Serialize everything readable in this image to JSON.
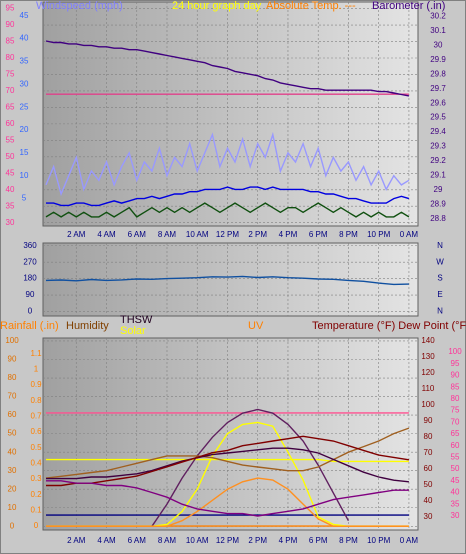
{
  "chart_data": [
    {
      "type": "line",
      "labels": [
        {
          "text": "Windspeed (mph)",
          "color": "#8080ff"
        },
        {
          "text": "24 hour graph day",
          "color": "#ffff00"
        },
        {
          "text": "Absolute Temp. ---",
          "color": "#ff8000"
        },
        {
          "text": "Barometer (.in)",
          "color": "#400080"
        }
      ],
      "x": [
        0,
        0.5,
        1,
        1.5,
        2,
        2.5,
        3,
        3.5,
        4,
        4.5,
        5,
        5.5,
        6,
        6.5,
        7,
        7.5,
        8,
        8.5,
        9,
        9.5,
        10,
        10.5,
        11,
        11.5,
        12,
        12.5,
        13,
        13.5,
        14,
        14.5,
        15,
        15.5,
        16,
        16.5,
        17,
        17.5,
        18,
        18.5,
        19,
        19.5,
        20,
        20.5,
        21,
        21.5,
        22,
        22.5,
        23,
        23.5,
        24
      ],
      "xlim": [
        -0.2,
        24.6
      ],
      "xticks": [
        {
          "value": 2,
          "label": "2 AM"
        },
        {
          "value": 4,
          "label": "4 AM"
        },
        {
          "value": 6,
          "label": "6 AM"
        },
        {
          "value": 8,
          "label": "8 AM"
        },
        {
          "value": 10,
          "label": "10 AM"
        },
        {
          "value": 12,
          "label": "12 PM"
        },
        {
          "value": 14,
          "label": "2 PM"
        },
        {
          "value": 16,
          "label": "4 PM"
        },
        {
          "value": 18,
          "label": "6 PM"
        },
        {
          "value": 20,
          "label": "8 PM"
        },
        {
          "value": 22,
          "label": "10 PM"
        },
        {
          "value": 24,
          "label": "0 AM"
        }
      ],
      "ylim": [
        29,
        97
      ],
      "yticks": [
        30,
        35,
        40,
        45,
        50,
        55,
        60,
        65,
        70,
        75,
        80,
        85,
        90,
        95
      ],
      "ycolor": "#ff3399",
      "y3lim": [
        -1,
        48
      ],
      "y3ticks": [
        5,
        10,
        15,
        20,
        25,
        30,
        35,
        40,
        45
      ],
      "y3color": "#3366ff",
      "y2lim": [
        28.75,
        30.3
      ],
      "y2ticks": [
        28.8,
        28.9,
        29,
        29.1,
        29.2,
        29.3,
        29.4,
        29.5,
        29.6,
        29.7,
        29.8,
        29.9,
        30,
        30.1,
        30.2
      ],
      "y2color": "#400080",
      "grid": true,
      "series": [
        {
          "name": "Absolute Temp.",
          "color": "#e0408a",
          "axis": "y",
          "values": [
            69,
            69,
            69,
            69,
            69,
            69,
            69,
            69,
            69,
            69,
            69,
            69,
            69,
            69,
            69,
            69,
            69,
            69,
            69,
            69,
            69,
            69,
            69,
            69,
            69,
            69,
            69,
            69,
            69,
            69,
            69,
            69,
            69,
            69,
            69,
            69,
            69,
            69,
            69,
            69,
            69,
            69,
            69,
            69,
            69,
            69,
            69,
            69,
            69
          ]
        },
        {
          "name": "Barometer (.in)",
          "color": "#400080",
          "axis": "y2",
          "values": [
            30.03,
            30.02,
            30.02,
            30.01,
            30.01,
            30.0,
            30.0,
            29.99,
            29.99,
            29.98,
            29.98,
            29.97,
            29.97,
            29.96,
            29.95,
            29.94,
            29.93,
            29.92,
            29.91,
            29.9,
            29.89,
            29.88,
            29.86,
            29.85,
            29.84,
            29.82,
            29.81,
            29.8,
            29.79,
            29.77,
            29.76,
            29.74,
            29.73,
            29.72,
            29.71,
            29.7,
            29.7,
            29.69,
            29.69,
            29.69,
            29.69,
            29.69,
            29.69,
            29.69,
            29.68,
            29.68,
            29.67,
            29.66,
            29.65
          ]
        },
        {
          "color": "#9999ff",
          "axis": "y3",
          "values": [
            8,
            12,
            6,
            10,
            14,
            7,
            11,
            9,
            13,
            8,
            12,
            15,
            9,
            13,
            11,
            16,
            10,
            14,
            12,
            17,
            11,
            15,
            19,
            12,
            16,
            13,
            18,
            12,
            17,
            14,
            19,
            11,
            15,
            13,
            17,
            12,
            16,
            10,
            14,
            11,
            13,
            9,
            12,
            8,
            11,
            7,
            10,
            8,
            9
          ]
        },
        {
          "color": "#0000e0",
          "axis": "y3",
          "values": [
            4,
            4,
            3.5,
            3.5,
            4,
            4,
            3.5,
            3.5,
            4,
            4.5,
            4,
            4.5,
            5,
            5,
            5.5,
            5,
            5.5,
            6,
            6,
            6.5,
            6.5,
            7,
            7,
            7,
            7.5,
            7,
            7,
            7.5,
            7.5,
            7,
            7.5,
            7,
            7,
            7,
            7,
            6.5,
            6.5,
            6,
            6,
            5.5,
            5,
            5,
            4.5,
            4,
            4,
            4,
            5,
            5.5,
            5
          ]
        },
        {
          "color": "#105010",
          "axis": "y3",
          "values": [
            1,
            2,
            1,
            2,
            1,
            2,
            1,
            1,
            2,
            1,
            2,
            3,
            1,
            2,
            3,
            2,
            3,
            2,
            3,
            2,
            3,
            4,
            3,
            2,
            3,
            4,
            3,
            2,
            3,
            4,
            3,
            2,
            3,
            3,
            2,
            3,
            4,
            3,
            2,
            3,
            2,
            1,
            2,
            1,
            2,
            1,
            1,
            2,
            1
          ]
        }
      ]
    },
    {
      "type": "line",
      "x": [
        0,
        1,
        2,
        3,
        4,
        5,
        6,
        7,
        8,
        9,
        10,
        11,
        12,
        13,
        14,
        15,
        16,
        17,
        18,
        19,
        20,
        21,
        22,
        23,
        24
      ],
      "xlim": [
        -0.2,
        24.6
      ],
      "ylim": [
        -25,
        375
      ],
      "yticks": [
        0,
        90,
        180,
        270,
        360
      ],
      "ycolor": "#000080",
      "y2lim": [
        -25,
        375
      ],
      "y2ticks": [
        {
          "value": 0,
          "label": "N"
        },
        {
          "value": 90,
          "label": "E"
        },
        {
          "value": 180,
          "label": "S"
        },
        {
          "value": 270,
          "label": "W"
        },
        {
          "value": 360,
          "label": "N"
        }
      ],
      "y2color": "#000080",
      "grid": true,
      "series": [
        {
          "color": "#1050a0",
          "axis": "y",
          "values": [
            170,
            172,
            168,
            175,
            170,
            173,
            178,
            176,
            180,
            182,
            185,
            190,
            188,
            192,
            186,
            190,
            185,
            182,
            178,
            176,
            170,
            165,
            155,
            148,
            150
          ]
        }
      ]
    },
    {
      "type": "line",
      "labels": [
        {
          "text": "Rainfall (.in)",
          "color": "#ff8000"
        },
        {
          "text": "Humidity",
          "color": "#804000"
        },
        {
          "text": "THSW",
          "color": "#200020"
        },
        {
          "text": "Solar",
          "color": "#ffff00"
        },
        {
          "text": "UV",
          "color": "#ff8000"
        },
        {
          "text": "Temperature (°F) Dew Point (°F)",
          "color": "#800000"
        }
      ],
      "x": [
        0,
        1,
        2,
        3,
        4,
        5,
        6,
        7,
        8,
        9,
        10,
        11,
        12,
        13,
        14,
        15,
        16,
        17,
        18,
        19,
        20,
        21,
        22,
        23,
        24
      ],
      "xlim": [
        -0.2,
        24.6
      ],
      "xticks": [
        {
          "value": 2,
          "label": "2 AM"
        },
        {
          "value": 4,
          "label": "4 AM"
        },
        {
          "value": 6,
          "label": "6 AM"
        },
        {
          "value": 8,
          "label": "8 AM"
        },
        {
          "value": 10,
          "label": "10 AM"
        },
        {
          "value": 12,
          "label": "12 PM"
        },
        {
          "value": 14,
          "label": "2 PM"
        },
        {
          "value": 16,
          "label": "4 PM"
        },
        {
          "value": 18,
          "label": "6 PM"
        },
        {
          "value": 20,
          "label": "8 PM"
        },
        {
          "value": 22,
          "label": "10 PM"
        },
        {
          "value": 24,
          "label": "0 AM"
        }
      ],
      "ylim": [
        -2,
        101.6
      ],
      "yticks": [
        0,
        10,
        20,
        30,
        40,
        50,
        60,
        70,
        80,
        90,
        100
      ],
      "ycolor": "#e07000",
      "y3lim": [
        -0.025,
        1.2
      ],
      "y3ticks": [
        0,
        0.1,
        0.2,
        0.3,
        0.4,
        0.5,
        0.6,
        0.7,
        0.8,
        0.9,
        1,
        1.1
      ],
      "y3color": "#ff8000",
      "y2lim": [
        21.9,
        141.9
      ],
      "y2ticks": [
        30,
        40,
        50,
        60,
        70,
        80,
        90,
        100,
        110,
        120,
        130,
        140
      ],
      "y2color": "#800000",
      "y4lim": [
        24,
        106
      ],
      "y4ticks": [
        30,
        35,
        40,
        45,
        50,
        55,
        60,
        65,
        70,
        75,
        80,
        85,
        90,
        95,
        100
      ],
      "y4color": "#ff3399",
      "grid": true,
      "series": [
        {
          "color": "#ff5090",
          "axis": "y4",
          "values": [
            74,
            74,
            74,
            74,
            74,
            74,
            74,
            74,
            74,
            74,
            74,
            74,
            74,
            74,
            74,
            74,
            74,
            74,
            74,
            74,
            74,
            74,
            74,
            74,
            74
          ]
        },
        {
          "color": "#ffff00",
          "axis": "y",
          "values": [
            36,
            36,
            36,
            36,
            36,
            36,
            36,
            36,
            36,
            36,
            36,
            36,
            36,
            36,
            36,
            36,
            36,
            36,
            36,
            35,
            35,
            35,
            35,
            35,
            35
          ]
        },
        {
          "color": "#000080",
          "axis": "y3",
          "values": [
            0.07,
            0.07,
            0.07,
            0.07,
            0.07,
            0.07,
            0.07,
            0.07,
            0.07,
            0.07,
            0.07,
            0.07,
            0.07,
            0.07,
            0.07,
            0.07,
            0.07,
            0.07,
            0.07,
            0.07,
            0.07,
            0.07,
            0.07,
            0.07,
            0.07
          ]
        },
        {
          "name": "Rainfall (.in)",
          "color": "#ff8000",
          "axis": "y3",
          "values": [
            0,
            0,
            0,
            0,
            0,
            0,
            0,
            0,
            0,
            0,
            0,
            0,
            0,
            0,
            0,
            0,
            0,
            0,
            0,
            0,
            0,
            0,
            0,
            0,
            0
          ]
        },
        {
          "color": "#602060",
          "axis": "y",
          "values": [
            null,
            null,
            null,
            null,
            null,
            null,
            null,
            0,
            12,
            26,
            38,
            48,
            56,
            61,
            63,
            61,
            55,
            46,
            33,
            18,
            3,
            null,
            null,
            null,
            null
          ]
        },
        {
          "name": "Solar",
          "color": "#ffff00",
          "axis": "y",
          "values": [
            0,
            0,
            0,
            0,
            0,
            0,
            0,
            0,
            1,
            8,
            20,
            38,
            50,
            55,
            56,
            54,
            40,
            25,
            5,
            1,
            0,
            0,
            0,
            0,
            0
          ]
        },
        {
          "name": "UV",
          "color": "#ff9020",
          "axis": "y",
          "values": [
            0,
            0,
            0,
            0,
            0,
            0,
            0,
            0,
            0,
            3,
            8,
            14,
            20,
            24,
            26,
            25,
            20,
            12,
            4,
            0,
            0,
            0,
            0,
            0,
            0
          ]
        },
        {
          "name": "Humidity",
          "color": "#a06020",
          "axis": "y",
          "values": [
            26,
            27,
            28,
            29,
            30,
            32,
            34,
            36,
            38,
            38,
            38,
            37,
            35,
            33,
            32,
            31,
            30,
            30,
            32,
            36,
            40,
            43,
            46,
            50,
            53
          ]
        },
        {
          "name": "THSW",
          "color": "#400040",
          "axis": "y2",
          "values": [
            54,
            54,
            54,
            55,
            55,
            56,
            57,
            59,
            62,
            65,
            67,
            69,
            70,
            71,
            72,
            73,
            73,
            72,
            70,
            66,
            62,
            58,
            55,
            53,
            52
          ]
        },
        {
          "name": "Temperature (°F)",
          "color": "#800000",
          "axis": "y4",
          "values": [
            43,
            43,
            44,
            44,
            45,
            46,
            47,
            49,
            51,
            53,
            55,
            57,
            58,
            60,
            61,
            62,
            63,
            64,
            63,
            62,
            60,
            58,
            56,
            55,
            54
          ]
        },
        {
          "name": "Dew Point (°F)",
          "color": "#800080",
          "axis": "y4",
          "values": [
            45,
            45,
            44,
            44,
            43,
            43,
            42,
            40,
            38,
            35,
            33,
            32,
            31,
            31,
            30,
            31,
            32,
            33,
            35,
            37,
            38,
            39,
            40,
            41,
            41
          ]
        }
      ]
    }
  ]
}
